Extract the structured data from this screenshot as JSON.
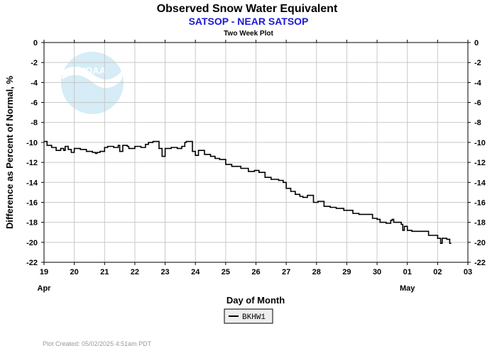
{
  "header": {
    "title": "Observed Snow Water Equivalent",
    "subtitle": "SATSOP - NEAR SATSOP",
    "plot_label": "Two Week Plot"
  },
  "colors": {
    "subtitle": "#1a1ad6",
    "line": "#000000",
    "grid": "#c8c8c8",
    "noaa_logo": "#d6ecf6",
    "footer": "#9a9a9a"
  },
  "icons": {
    "watermark": "noaa-logo-icon"
  },
  "watermark": {
    "text": "NOAA"
  },
  "footer": {
    "created": "Plot Created: 05/02/2025 4:51am PDT"
  },
  "legend": {
    "items": [
      {
        "label": "BKHW1",
        "color": "#000000"
      }
    ]
  },
  "chart_data": {
    "type": "line",
    "title": "Observed Snow Water Equivalent",
    "subtitle": "SATSOP - NEAR SATSOP",
    "xlabel": "Day of Month",
    "ylabel": "Difference as Percent of Normal, %",
    "xlim": [
      0,
      14
    ],
    "ylim": [
      -22,
      0
    ],
    "x_ticks": [
      0,
      1,
      2,
      3,
      4,
      5,
      6,
      7,
      8,
      9,
      10,
      11,
      12,
      13,
      14
    ],
    "x_tick_labels": [
      "19",
      "20",
      "21",
      "22",
      "23",
      "24",
      "25",
      "26",
      "27",
      "28",
      "29",
      "30",
      "01",
      "02",
      "03"
    ],
    "y_ticks": [
      0,
      -2,
      -4,
      -6,
      -8,
      -10,
      -12,
      -14,
      -16,
      -18,
      -20,
      -22
    ],
    "month_labels": [
      {
        "x": 0,
        "label": "Apr"
      },
      {
        "x": 12,
        "label": "May"
      }
    ],
    "grid": true,
    "legend_position": "bottom-center",
    "series": [
      {
        "name": "BKHW1",
        "color": "#000000",
        "x": [
          0,
          0.1,
          0.25,
          0.4,
          0.55,
          0.65,
          0.7,
          0.8,
          0.9,
          1.0,
          1.2,
          1.4,
          1.6,
          1.7,
          1.75,
          1.85,
          2.0,
          2.1,
          2.3,
          2.45,
          2.5,
          2.6,
          2.75,
          2.8,
          3.0,
          3.2,
          3.35,
          3.45,
          3.6,
          3.8,
          3.9,
          4.0,
          4.2,
          4.4,
          4.55,
          4.65,
          4.7,
          4.9,
          5.0,
          5.1,
          5.3,
          5.5,
          5.65,
          5.8,
          6.0,
          6.2,
          6.5,
          6.75,
          6.95,
          7.1,
          7.3,
          7.5,
          7.75,
          7.9,
          8.0,
          8.15,
          8.3,
          8.45,
          8.55,
          8.7,
          8.9,
          9.05,
          9.25,
          9.45,
          9.55,
          9.65,
          9.75,
          9.9,
          10.0,
          10.2,
          10.4,
          10.6,
          10.85,
          11.0,
          11.1,
          11.3,
          11.45,
          11.5,
          11.55,
          11.7,
          11.8,
          11.85,
          11.9,
          12.0,
          12.15,
          12.3,
          12.45,
          12.6,
          12.7,
          12.85,
          13.0,
          13.1,
          13.15,
          13.3,
          13.4,
          13.45
        ],
        "values": [
          -9.9,
          -10.3,
          -10.5,
          -10.8,
          -10.6,
          -10.8,
          -10.4,
          -10.7,
          -11.0,
          -10.6,
          -10.7,
          -10.9,
          -11.0,
          -11.1,
          -11.0,
          -10.9,
          -10.5,
          -10.4,
          -10.5,
          -10.3,
          -10.9,
          -10.3,
          -10.4,
          -10.6,
          -10.4,
          -10.5,
          -10.2,
          -10.0,
          -9.9,
          -10.6,
          -11.4,
          -10.6,
          -10.5,
          -10.6,
          -10.4,
          -10.0,
          -9.9,
          -10.9,
          -11.3,
          -10.8,
          -11.2,
          -11.4,
          -11.6,
          -11.7,
          -12.2,
          -12.4,
          -12.6,
          -12.9,
          -12.8,
          -13.0,
          -13.5,
          -13.7,
          -13.8,
          -14.0,
          -14.6,
          -14.9,
          -15.2,
          -15.4,
          -15.5,
          -15.3,
          -16.0,
          -15.9,
          -16.4,
          -16.5,
          -16.5,
          -16.6,
          -16.6,
          -16.8,
          -16.8,
          -17.1,
          -17.2,
          -17.2,
          -17.6,
          -17.7,
          -18.0,
          -18.1,
          -17.8,
          -17.7,
          -18.0,
          -18.0,
          -18.2,
          -18.8,
          -18.4,
          -18.8,
          -18.9,
          -18.9,
          -18.9,
          -18.9,
          -19.3,
          -19.3,
          -19.6,
          -20.1,
          -19.6,
          -19.7,
          -20.1,
          -20.1
        ]
      }
    ]
  }
}
